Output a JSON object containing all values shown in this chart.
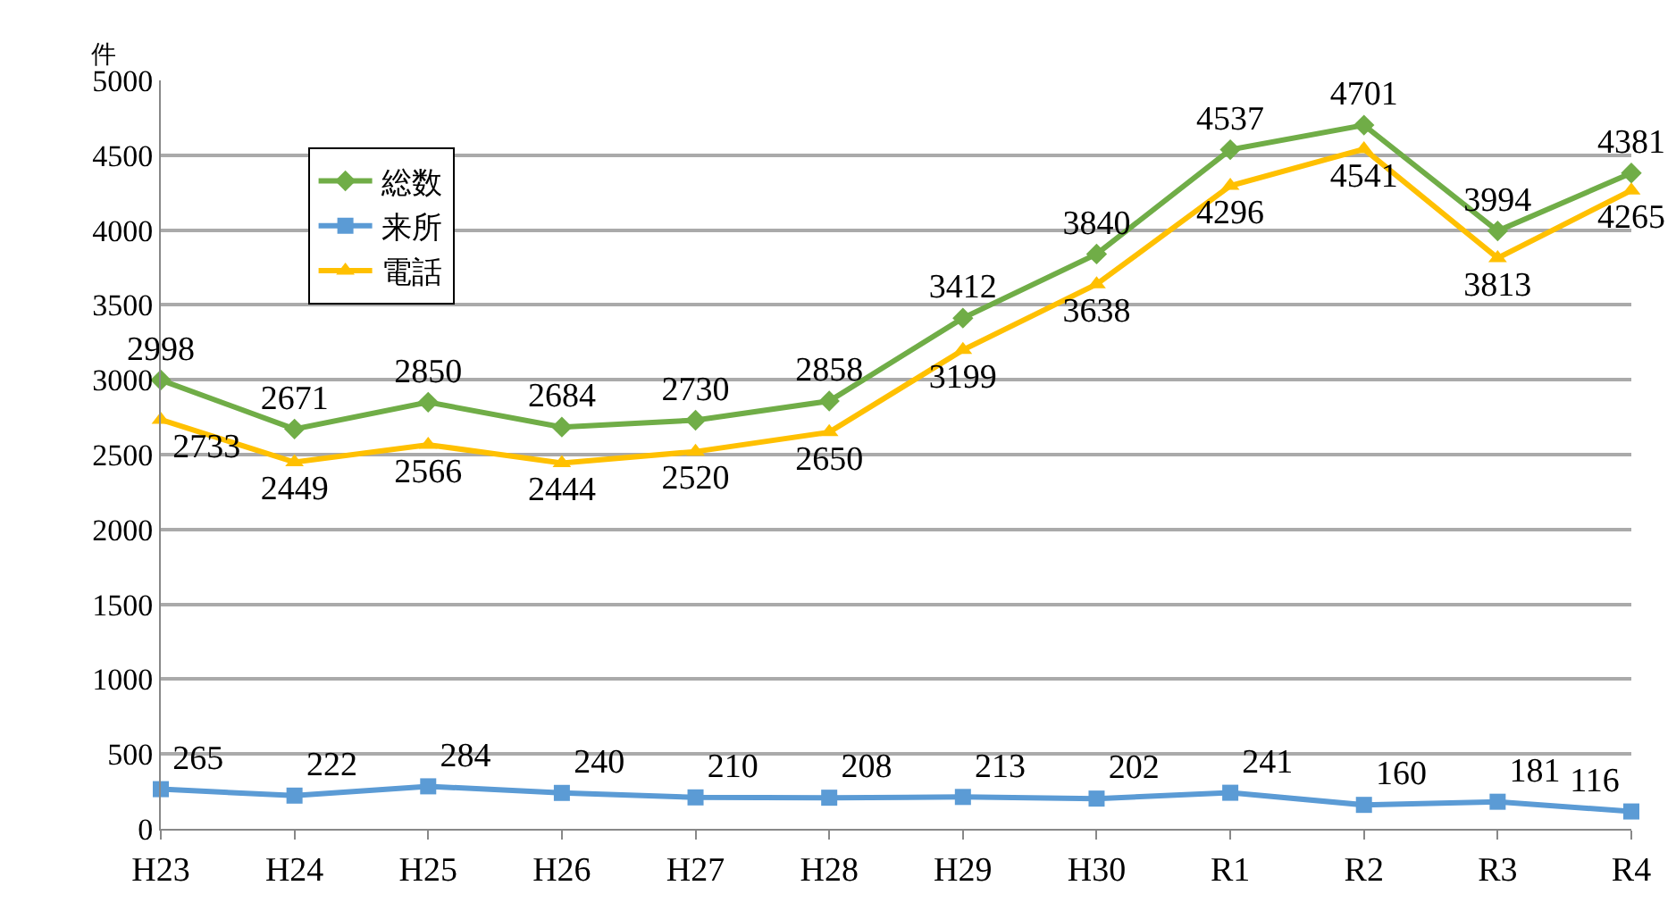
{
  "chart_data": {
    "type": "line",
    "ylabel": "件",
    "categories": [
      "H23",
      "H24",
      "H25",
      "H26",
      "H27",
      "H28",
      "H29",
      "H30",
      "R1",
      "R2",
      "R3",
      "R4"
    ],
    "series": [
      {
        "name": "総数",
        "color": "#70ad47",
        "marker": "diamond",
        "values": [
          2998,
          2671,
          2850,
          2684,
          2730,
          2858,
          3412,
          3840,
          4537,
          4701,
          3994,
          4381
        ]
      },
      {
        "name": "来所",
        "color": "#5b9bd5",
        "marker": "square",
        "values": [
          265,
          222,
          284,
          240,
          210,
          208,
          213,
          202,
          241,
          160,
          181,
          116
        ]
      },
      {
        "name": "電話",
        "color": "#ffc000",
        "marker": "triangle",
        "values": [
          2733,
          2449,
          2566,
          2444,
          2520,
          2650,
          3199,
          3638,
          4296,
          4541,
          3813,
          4265
        ]
      }
    ],
    "ylim": [
      0,
      5000
    ],
    "yticks": [
      0,
      500,
      1000,
      1500,
      2000,
      2500,
      3000,
      3500,
      4000,
      4500,
      5000
    ],
    "grid": "y",
    "legend": "top left",
    "data_labels": true,
    "line_style": "solid"
  }
}
